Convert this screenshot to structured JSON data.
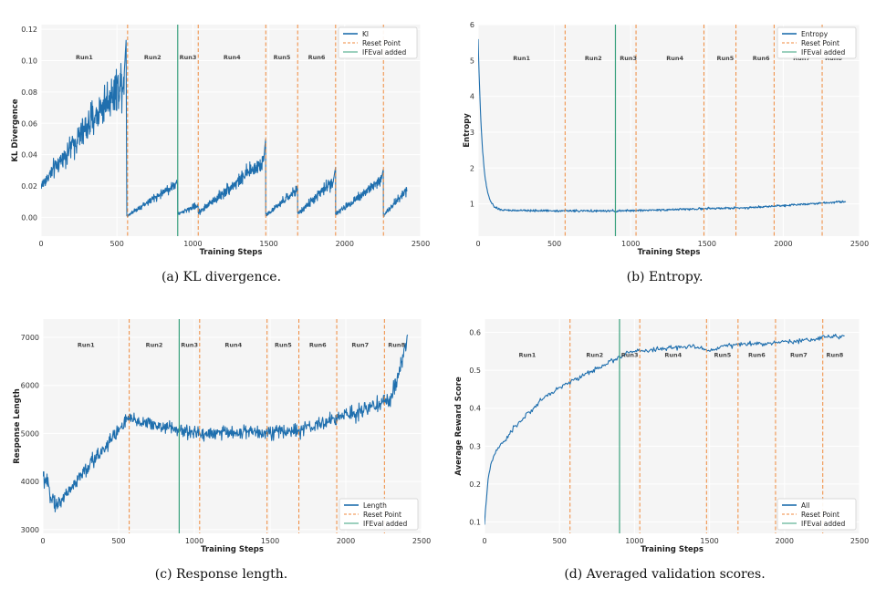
{
  "chart_data": [
    {
      "type": "line",
      "caption": "(a) KL divergence.",
      "xlabel": "Training Steps",
      "ylabel": "KL Divergence",
      "xlim": [
        0,
        2500
      ],
      "ylim": [
        -0.012,
        0.123
      ],
      "xticks": [
        0,
        500,
        1000,
        1500,
        2000,
        2500
      ],
      "yticks": [
        0.0,
        0.02,
        0.04,
        0.06,
        0.08,
        0.1,
        0.12
      ],
      "ytick_labels": [
        "0.00",
        "0.02",
        "0.04",
        "0.06",
        "0.08",
        "0.10",
        "0.12"
      ],
      "series": [
        {
          "name": "Kl",
          "segments": [
            {
              "x0": 0,
              "x1": 560,
              "y0": 0.02,
              "y1": 0.09,
              "noise": 0.012,
              "peak": 0.113
            },
            {
              "x0": 565,
              "x1": 900,
              "y0": 0.001,
              "y1": 0.022,
              "noise": 0.003
            },
            {
              "x0": 900,
              "x1": 1035,
              "y0": 0.002,
              "y1": 0.008,
              "noise": 0.002
            },
            {
              "x0": 1035,
              "x1": 1480,
              "y0": 0.003,
              "y1": 0.037,
              "noise": 0.005,
              "peak": 0.051
            },
            {
              "x0": 1480,
              "x1": 1690,
              "y0": 0.001,
              "y1": 0.018,
              "noise": 0.003
            },
            {
              "x0": 1690,
              "x1": 1940,
              "y0": 0.002,
              "y1": 0.025,
              "noise": 0.004,
              "peak": 0.032
            },
            {
              "x0": 1940,
              "x1": 2255,
              "y0": 0.002,
              "y1": 0.025,
              "noise": 0.004,
              "peak": 0.031
            },
            {
              "x0": 2255,
              "x1": 2410,
              "y0": 0.001,
              "y1": 0.018,
              "noise": 0.003
            }
          ]
        }
      ],
      "reset_points": [
        570,
        1035,
        1480,
        1690,
        1940,
        2255
      ],
      "ifeval_added": 900,
      "run_labels": [
        {
          "text": "Run1",
          "x": 285
        },
        {
          "text": "Run2",
          "x": 735
        },
        {
          "text": "Run3",
          "x": 968
        },
        {
          "text": "Run4",
          "x": 1258
        },
        {
          "text": "Run5",
          "x": 1587
        },
        {
          "text": "Run6",
          "x": 1815
        }
      ],
      "run_label_y": 0.1025,
      "legend": [
        "Kl",
        "Reset Point",
        "IFEval added"
      ],
      "legend_position": "top-right"
    },
    {
      "type": "line",
      "caption": "(b) Entropy.",
      "xlabel": "Training Steps",
      "ylabel": "Entropy",
      "xlim": [
        0,
        2500
      ],
      "ylim": [
        0.1,
        6.0
      ],
      "xticks": [
        0,
        500,
        1000,
        1500,
        2000,
        2500
      ],
      "yticks": [
        1,
        2,
        3,
        4,
        5,
        6
      ],
      "ytick_labels": [
        "1",
        "2",
        "3",
        "4",
        "5",
        "6"
      ],
      "series": [
        {
          "name": "Entropy",
          "decay": {
            "start": 5.6,
            "end": 0.82,
            "rate": 28
          },
          "segments": [
            {
              "x0": 0,
              "x1": 900,
              "y0": 0.82,
              "y1": 0.8,
              "noise": 0.03
            },
            {
              "x0": 900,
              "x1": 1800,
              "y0": 0.8,
              "y1": 0.9,
              "noise": 0.03
            },
            {
              "x0": 1800,
              "x1": 2410,
              "y0": 0.9,
              "y1": 1.07,
              "noise": 0.03
            }
          ]
        }
      ],
      "reset_points": [
        570,
        1035,
        1480,
        1690,
        1940,
        2255
      ],
      "ifeval_added": 900,
      "run_labels": [
        {
          "text": "Run1",
          "x": 285
        },
        {
          "text": "Run2",
          "x": 755
        },
        {
          "text": "Run3",
          "x": 985
        },
        {
          "text": "Run4",
          "x": 1290
        },
        {
          "text": "Run5",
          "x": 1620
        },
        {
          "text": "Run6",
          "x": 1855
        },
        {
          "text": "Run7",
          "x": 2120
        },
        {
          "text": "Run8",
          "x": 2330
        }
      ],
      "run_label_y": 5.08,
      "legend": [
        "Entropy",
        "Reset Point",
        "IFEval added"
      ],
      "legend_position": "top-right"
    },
    {
      "type": "line",
      "caption": "(c) Response length.",
      "xlabel": "Training Steps",
      "ylabel": "Response Length",
      "xlim": [
        0,
        2500
      ],
      "ylim": [
        2920,
        7380
      ],
      "xticks": [
        0,
        500,
        1000,
        1500,
        2000,
        2500
      ],
      "yticks": [
        3000,
        4000,
        5000,
        6000,
        7000
      ],
      "ytick_labels": [
        "3000",
        "4000",
        "5000",
        "6000",
        "7000"
      ],
      "series": [
        {
          "name": "Length",
          "segments": [
            {
              "x0": 0,
              "x1": 90,
              "y0": 4100,
              "y1": 3500,
              "noise": 180
            },
            {
              "x0": 90,
              "x1": 560,
              "y0": 3500,
              "y1": 5300,
              "noise": 170
            },
            {
              "x0": 560,
              "x1": 1000,
              "y0": 5300,
              "y1": 5000,
              "noise": 140
            },
            {
              "x0": 1000,
              "x1": 1700,
              "y0": 5000,
              "y1": 5050,
              "noise": 150
            },
            {
              "x0": 1700,
              "x1": 2300,
              "y0": 5050,
              "y1": 5700,
              "noise": 150
            },
            {
              "x0": 2300,
              "x1": 2410,
              "y0": 5700,
              "y1": 7000,
              "noise": 170
            }
          ]
        }
      ],
      "reset_points": [
        570,
        1035,
        1480,
        1690,
        1940,
        2255
      ],
      "ifeval_added": 900,
      "run_labels": [
        {
          "text": "Run1",
          "x": 285
        },
        {
          "text": "Run2",
          "x": 735
        },
        {
          "text": "Run3",
          "x": 968
        },
        {
          "text": "Run4",
          "x": 1258
        },
        {
          "text": "Run5",
          "x": 1587
        },
        {
          "text": "Run6",
          "x": 1815
        },
        {
          "text": "Run7",
          "x": 2095
        },
        {
          "text": "Run8",
          "x": 2335
        }
      ],
      "run_label_y": 6860,
      "legend": [
        "Length",
        "Reset Point",
        "IFEval added"
      ],
      "legend_position": "bottom-right"
    },
    {
      "type": "line",
      "caption": "(d) Averaged validation scores.",
      "xlabel": "Training Steps",
      "ylabel": "Average Reward Score",
      "xlim": [
        0,
        2500
      ],
      "ylim": [
        0.07,
        0.635
      ],
      "xticks": [
        0,
        500,
        1000,
        1500,
        2000,
        2500
      ],
      "yticks": [
        0.1,
        0.2,
        0.3,
        0.4,
        0.5,
        0.6
      ],
      "ytick_labels": [
        "0.1",
        "0.2",
        "0.3",
        "0.4",
        "0.5",
        "0.6"
      ],
      "series": [
        {
          "name": "All",
          "points": [
            [
              0,
              0.09
            ],
            [
              10,
              0.15
            ],
            [
              20,
              0.2
            ],
            [
              40,
              0.25
            ],
            [
              70,
              0.28
            ],
            [
              100,
              0.3
            ],
            [
              150,
              0.32
            ],
            [
              200,
              0.35
            ],
            [
              250,
              0.37
            ],
            [
              300,
              0.39
            ],
            [
              350,
              0.41
            ],
            [
              400,
              0.43
            ],
            [
              450,
              0.44
            ],
            [
              500,
              0.455
            ],
            [
              550,
              0.465
            ],
            [
              600,
              0.475
            ],
            [
              650,
              0.485
            ],
            [
              700,
              0.495
            ],
            [
              750,
              0.505
            ],
            [
              800,
              0.515
            ],
            [
              850,
              0.525
            ],
            [
              900,
              0.535
            ],
            [
              950,
              0.545
            ],
            [
              1000,
              0.55
            ],
            [
              1100,
              0.552
            ],
            [
              1200,
              0.558
            ],
            [
              1300,
              0.56
            ],
            [
              1400,
              0.562
            ],
            [
              1500,
              0.552
            ],
            [
              1600,
              0.565
            ],
            [
              1700,
              0.567
            ],
            [
              1800,
              0.57
            ],
            [
              1900,
              0.572
            ],
            [
              2000,
              0.575
            ],
            [
              2100,
              0.577
            ],
            [
              2200,
              0.582
            ],
            [
              2300,
              0.59
            ],
            [
              2400,
              0.59
            ]
          ],
          "noise": 0.006
        }
      ],
      "reset_points": [
        570,
        1035,
        1480,
        1690,
        1940,
        2255
      ],
      "ifeval_added": 900,
      "run_labels": [
        {
          "text": "Run1",
          "x": 285
        },
        {
          "text": "Run2",
          "x": 735
        },
        {
          "text": "Run3",
          "x": 968
        },
        {
          "text": "Run4",
          "x": 1258
        },
        {
          "text": "Run5",
          "x": 1587
        },
        {
          "text": "Run6",
          "x": 1815
        },
        {
          "text": "Run7",
          "x": 2095
        },
        {
          "text": "Run8",
          "x": 2335
        }
      ],
      "run_label_y": 0.543,
      "legend": [
        "All",
        "Reset Point",
        "IFEval added"
      ],
      "legend_position": "bottom-right"
    }
  ],
  "colors": {
    "series": "#1f6fae",
    "reset": "#f08a3c",
    "ifeval": "#3aa17e",
    "plot_bg": "#f5f5f5",
    "grid": "#ffffff"
  }
}
